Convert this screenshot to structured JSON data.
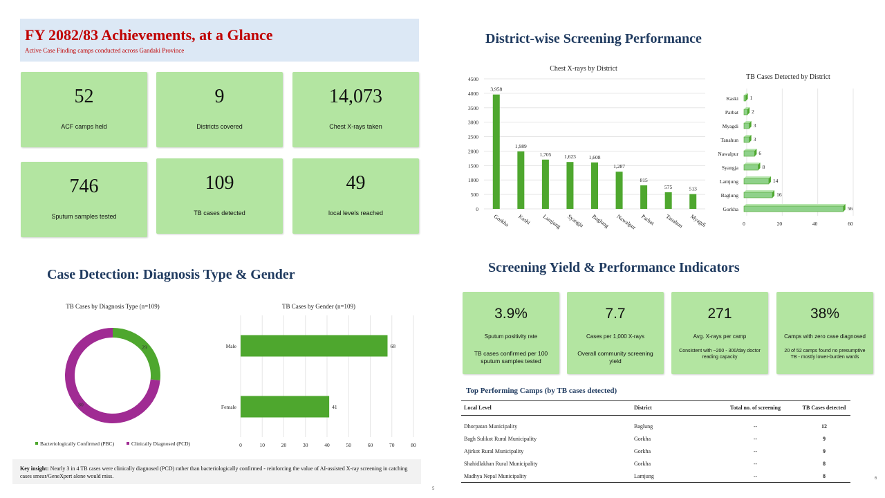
{
  "header": {
    "title": "FY 2082/83 Achievements, at a Glance",
    "subtitle": "Active Case Finding camps conducted across Gandaki Province"
  },
  "kpis": [
    {
      "value": "52",
      "label": "ACF camps held"
    },
    {
      "value": "9",
      "label": "Districts covered"
    },
    {
      "value": "14,073",
      "label": "Chest X-rays taken"
    },
    {
      "value": "746",
      "label": "Sputum samples tested"
    },
    {
      "value": "109",
      "label": "TB cases detected"
    },
    {
      "value": "49",
      "label": "local levels reached"
    }
  ],
  "sections": {
    "district": "District-wise Screening Performance",
    "detection": "Case Detection: Diagnosis Type & Gender",
    "yield": "Screening Yield & Performance Indicators"
  },
  "chart_data": [
    {
      "type": "bar",
      "title": "Chest X-rays by District",
      "categories": [
        "Gorkha",
        "Kaski",
        "Lamjung",
        "Syangja",
        "Baglung",
        "Nawalpur",
        "Parbat",
        "Tanahun",
        "Myagdi"
      ],
      "values": [
        3958,
        1989,
        1705,
        1623,
        1608,
        1287,
        815,
        575,
        513
      ],
      "value_labels": [
        "3,958",
        "1,989",
        "1,705",
        "1,623",
        "1,608",
        "1,287",
        "815",
        "575",
        "513"
      ],
      "ylim": [
        0,
        4500
      ],
      "yticks": [
        "0",
        "500",
        "1000",
        "1500",
        "2000",
        "2500",
        "3000",
        "3500",
        "4000",
        "4500"
      ],
      "color": "#4ea72e"
    },
    {
      "type": "bar",
      "orientation": "horizontal",
      "title": "TB Cases Detected by District",
      "categories": [
        "Kaski",
        "Parbat",
        "Myagdi",
        "Tanahun",
        "Nawalpur",
        "Syangja",
        "Lamjung",
        "Baglung",
        "Gorkha"
      ],
      "values": [
        1,
        2,
        3,
        3,
        6,
        8,
        14,
        16,
        56
      ],
      "xlim": [
        0,
        60
      ],
      "xticks": [
        "0",
        "20",
        "40",
        "60"
      ],
      "color": "#8fd18a"
    },
    {
      "type": "pie",
      "title": "TB Cases by Diagnosis Type (n=109)",
      "labels": [
        "Bacteriologically Confirmed (PBC)",
        "Clinically Diagnosed (PCD)"
      ],
      "values": [
        29,
        80
      ],
      "colors": [
        "#4ea72e",
        "#a02b93"
      ]
    },
    {
      "type": "bar",
      "orientation": "horizontal",
      "title": "TB Cases by Gender (n=109)",
      "categories": [
        "Male",
        "Female"
      ],
      "values": [
        68,
        41
      ],
      "xlim": [
        0,
        80
      ],
      "xticks": [
        "0",
        "10",
        "20",
        "30",
        "40",
        "50",
        "60",
        "70",
        "80"
      ],
      "color": "#4ea72e"
    }
  ],
  "indicators": [
    {
      "value": "3.9%",
      "label": "Sputum positivity rate",
      "desc": "TB cases confirmed per 100 sputum samples tested"
    },
    {
      "value": "7.7",
      "label": "Cases per 1,000 X-rays",
      "desc": "Overall community screening yield"
    },
    {
      "value": "271",
      "label": "Avg. X-rays per camp",
      "desc": "Consistent with ~200 - 300/day doctor reading capacity"
    },
    {
      "value": "38%",
      "label": "Camps with zero case diagnosed",
      "desc": "20 of 52 camps found no presumptive TB - mostly lower-burden wards"
    }
  ],
  "top_camps": {
    "title": "Top Performing Camps (by TB cases detected)",
    "headers": [
      "Local Level",
      "District",
      "Total no. of screening",
      "TB Cases detected"
    ],
    "rows": [
      [
        "Dhorpatan Municipality",
        "Baglung",
        "--",
        "12"
      ],
      [
        "Bagh Sulikot Rural Municipality",
        "Gorkha",
        "--",
        "9"
      ],
      [
        "Ajirkot Rural Municipality",
        "Gorkha",
        "--",
        "9"
      ],
      [
        "Shahidlakhan Rural Municipality",
        "Gorkha",
        "--",
        "8"
      ],
      [
        "Madhya Nepal Municipality",
        "Lamjung",
        "--",
        "8"
      ]
    ]
  },
  "insight": {
    "label": "Key insight:",
    "text": " Nearly 3 in 4 TB cases were clinically diagnosed (PCD) rather than bacteriologically confirmed - reinforcing the value of AI-assisted X-ray screening in catching cases smear/GeneXpert alone would miss."
  },
  "pages": {
    "left": "5",
    "right": "6"
  }
}
